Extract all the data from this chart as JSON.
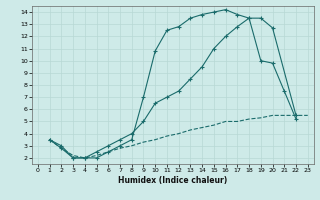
{
  "xlabel": "Humidex (Indice chaleur)",
  "bg_color": "#ceeae8",
  "grid_color": "#b8d8d5",
  "line_color": "#1a6b6b",
  "xlim": [
    -0.5,
    23.5
  ],
  "ylim": [
    1.5,
    14.5
  ],
  "xticks": [
    0,
    1,
    2,
    3,
    4,
    5,
    6,
    7,
    8,
    9,
    10,
    11,
    12,
    13,
    14,
    15,
    16,
    17,
    18,
    19,
    20,
    21,
    22,
    23
  ],
  "yticks": [
    2,
    3,
    4,
    5,
    6,
    7,
    8,
    9,
    10,
    11,
    12,
    13,
    14
  ],
  "line1_x": [
    1,
    2,
    3,
    4,
    5,
    6,
    7,
    8,
    9,
    10,
    11,
    12,
    13,
    14,
    15,
    16,
    17,
    18,
    19,
    20,
    22
  ],
  "line1_y": [
    3.5,
    3.0,
    2.0,
    2.0,
    2.0,
    2.5,
    3.0,
    3.5,
    7.0,
    10.8,
    12.5,
    12.8,
    13.5,
    13.8,
    14.0,
    14.2,
    13.8,
    13.5,
    13.5,
    12.7,
    5.5
  ],
  "line2_x": [
    1,
    2,
    3,
    4,
    5,
    6,
    7,
    8,
    9,
    10,
    11,
    12,
    13,
    14,
    15,
    16,
    17,
    18,
    19,
    20,
    21,
    22
  ],
  "line2_y": [
    3.5,
    2.8,
    2.0,
    2.0,
    2.5,
    3.0,
    3.5,
    4.0,
    5.0,
    6.5,
    7.0,
    7.5,
    8.5,
    9.5,
    11.0,
    12.0,
    12.8,
    13.5,
    10.0,
    9.8,
    7.5,
    5.2
  ],
  "line3_x": [
    1,
    2,
    3,
    4,
    5,
    6,
    7,
    8,
    9,
    10,
    11,
    12,
    13,
    14,
    15,
    16,
    17,
    18,
    19,
    20,
    21,
    22,
    23
  ],
  "line3_y": [
    3.5,
    2.8,
    2.2,
    2.0,
    2.2,
    2.5,
    2.8,
    3.0,
    3.3,
    3.5,
    3.8,
    4.0,
    4.3,
    4.5,
    4.7,
    5.0,
    5.0,
    5.2,
    5.3,
    5.5,
    5.5,
    5.5,
    5.5
  ]
}
